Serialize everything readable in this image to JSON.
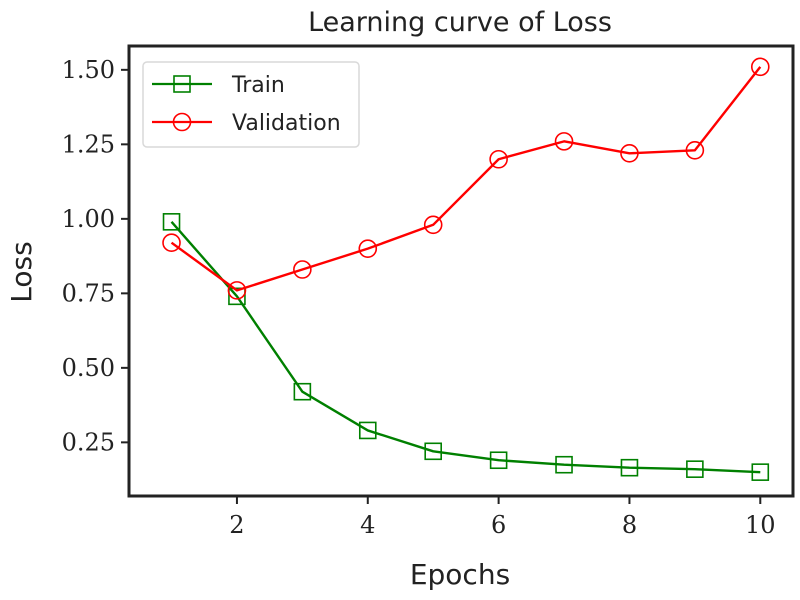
{
  "chart_data": {
    "type": "line",
    "title": "Learning curve of Loss",
    "xlabel": "Epochs",
    "ylabel": "Loss",
    "xlim": [
      0.35,
      10.5
    ],
    "ylim": [
      0.07,
      1.58
    ],
    "x_ticks": [
      2,
      4,
      6,
      8,
      10
    ],
    "x_tick_labels": [
      "2",
      "4",
      "6",
      "8",
      "10"
    ],
    "y_ticks": [
      0.25,
      0.5,
      0.75,
      1.0,
      1.25,
      1.5
    ],
    "y_tick_labels": [
      "0.25",
      "0.50",
      "0.75",
      "1.00",
      "1.25",
      "1.50"
    ],
    "grid": false,
    "legend_position": "top-left",
    "x": [
      1,
      2,
      3,
      4,
      5,
      6,
      7,
      8,
      9,
      10
    ],
    "series": [
      {
        "name": "Train",
        "color": "#008000",
        "marker": "square",
        "values": [
          0.99,
          0.74,
          0.42,
          0.29,
          0.22,
          0.19,
          0.175,
          0.165,
          0.16,
          0.15
        ]
      },
      {
        "name": "Validation",
        "color": "#ff0000",
        "marker": "circle",
        "values": [
          0.92,
          0.76,
          0.83,
          0.9,
          0.98,
          1.2,
          1.26,
          1.22,
          1.23,
          1.51
        ]
      }
    ]
  }
}
